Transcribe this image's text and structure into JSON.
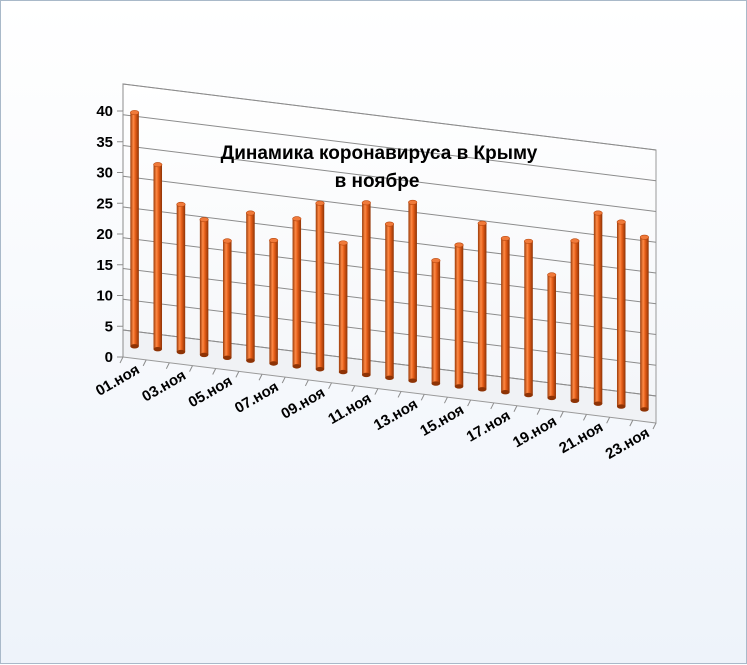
{
  "chart_data": {
    "type": "bar",
    "title_lines": [
      "Динамика  коронавируса в Крыму",
      "в ноябре"
    ],
    "xlabel": "",
    "ylabel": "",
    "ylim": [
      0,
      40
    ],
    "yticks": [
      "0",
      "5",
      "10",
      "15",
      "20",
      "25",
      "30",
      "35",
      "40"
    ],
    "categories": [
      "01.ноя",
      "02.ноя",
      "03.ноя",
      "04.ноя",
      "05.ноя",
      "06.ноя",
      "07.ноя",
      "08.ноя",
      "09.ноя",
      "10.ноя",
      "11.ноя",
      "12.ноя",
      "13.ноя",
      "14.ноя",
      "15.ноя",
      "16.ноя",
      "17.ноя",
      "18.ноя",
      "19.ноя",
      "20.ноя",
      "21.ноя",
      "22.ноя",
      "23.ноя"
    ],
    "x_tick_labels_shown": [
      "01.ноя",
      "03.ноя",
      "05.ноя",
      "07.ноя",
      "09.ноя",
      "11.ноя",
      "13.ноя",
      "15.ноя",
      "17.ноя",
      "19.ноя",
      "21.ноя",
      "23.ноя"
    ],
    "values": [
      38,
      30,
      24,
      22,
      19,
      24,
      20,
      24,
      27,
      21,
      28,
      25,
      29,
      20,
      23,
      27,
      25,
      25,
      20,
      26,
      31,
      30,
      28
    ],
    "bar_color": "#e35c17",
    "grid": true
  }
}
